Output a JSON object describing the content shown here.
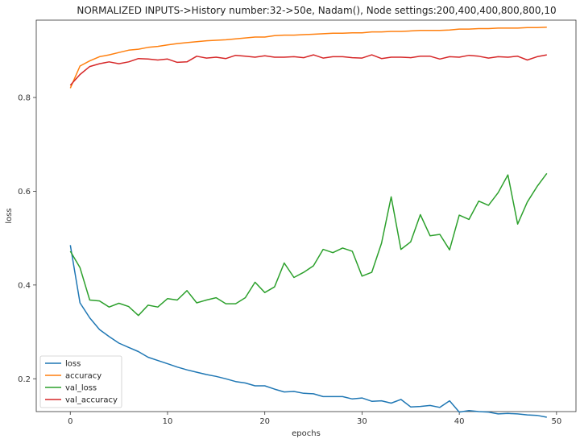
{
  "chart_data": {
    "type": "line",
    "title": "NORMALIZED INPUTS->History number:32->50e, Nadam(), Node settings:200,400,400,800,800,10",
    "xlabel": "epochs",
    "ylabel": "loss",
    "xlim": [
      -3.5,
      52
    ],
    "ylim": [
      0.13,
      0.965
    ],
    "xticks": [
      0,
      10,
      20,
      30,
      40,
      50
    ],
    "yticks": [
      0.2,
      0.4,
      0.6,
      0.8
    ],
    "grid": false,
    "legend_position": "lower-left",
    "x": [
      0,
      1,
      2,
      3,
      4,
      5,
      6,
      7,
      8,
      9,
      10,
      11,
      12,
      13,
      14,
      15,
      16,
      17,
      18,
      19,
      20,
      21,
      22,
      23,
      24,
      25,
      26,
      27,
      28,
      29,
      30,
      31,
      32,
      33,
      34,
      35,
      36,
      37,
      38,
      39,
      40,
      41,
      42,
      43,
      44,
      45,
      46,
      47,
      48,
      49
    ],
    "series": [
      {
        "name": "loss",
        "color": "#1f77b4",
        "values": [
          0.485,
          0.362,
          0.33,
          0.305,
          0.29,
          0.276,
          0.267,
          0.258,
          0.246,
          0.239,
          0.232,
          0.225,
          0.219,
          0.214,
          0.209,
          0.205,
          0.2,
          0.194,
          0.191,
          0.185,
          0.185,
          0.178,
          0.172,
          0.173,
          0.169,
          0.168,
          0.162,
          0.162,
          0.162,
          0.157,
          0.159,
          0.152,
          0.153,
          0.148,
          0.156,
          0.14,
          0.141,
          0.143,
          0.139,
          0.153,
          0.129,
          0.132,
          0.13,
          0.129,
          0.125,
          0.126,
          0.125,
          0.123,
          0.122,
          0.118
        ]
      },
      {
        "name": "accuracy",
        "color": "#ff7f0e",
        "values": [
          0.82,
          0.867,
          0.878,
          0.887,
          0.891,
          0.896,
          0.901,
          0.903,
          0.907,
          0.909,
          0.912,
          0.915,
          0.917,
          0.919,
          0.921,
          0.922,
          0.923,
          0.925,
          0.927,
          0.929,
          0.929,
          0.932,
          0.933,
          0.933,
          0.934,
          0.935,
          0.936,
          0.937,
          0.937,
          0.938,
          0.938,
          0.94,
          0.94,
          0.941,
          0.941,
          0.942,
          0.943,
          0.943,
          0.943,
          0.944,
          0.946,
          0.946,
          0.947,
          0.947,
          0.948,
          0.948,
          0.948,
          0.949,
          0.949,
          0.95
        ]
      },
      {
        "name": "val_loss",
        "color": "#2ca02c",
        "values": [
          0.472,
          0.437,
          0.368,
          0.366,
          0.353,
          0.361,
          0.354,
          0.335,
          0.357,
          0.353,
          0.371,
          0.368,
          0.388,
          0.362,
          0.368,
          0.373,
          0.36,
          0.36,
          0.373,
          0.406,
          0.384,
          0.396,
          0.447,
          0.416,
          0.427,
          0.441,
          0.476,
          0.469,
          0.479,
          0.472,
          0.419,
          0.427,
          0.489,
          0.588,
          0.476,
          0.492,
          0.55,
          0.505,
          0.508,
          0.475,
          0.549,
          0.54,
          0.579,
          0.57,
          0.597,
          0.635,
          0.53,
          0.577,
          0.61,
          0.638
        ]
      },
      {
        "name": "val_accuracy",
        "color": "#d62728",
        "values": [
          0.826,
          0.849,
          0.866,
          0.872,
          0.876,
          0.872,
          0.876,
          0.883,
          0.882,
          0.88,
          0.882,
          0.875,
          0.876,
          0.888,
          0.884,
          0.886,
          0.883,
          0.89,
          0.888,
          0.886,
          0.889,
          0.886,
          0.886,
          0.887,
          0.885,
          0.891,
          0.884,
          0.887,
          0.887,
          0.885,
          0.884,
          0.891,
          0.883,
          0.886,
          0.886,
          0.885,
          0.888,
          0.888,
          0.882,
          0.887,
          0.886,
          0.89,
          0.888,
          0.884,
          0.887,
          0.886,
          0.888,
          0.88,
          0.887,
          0.891
        ]
      }
    ]
  }
}
